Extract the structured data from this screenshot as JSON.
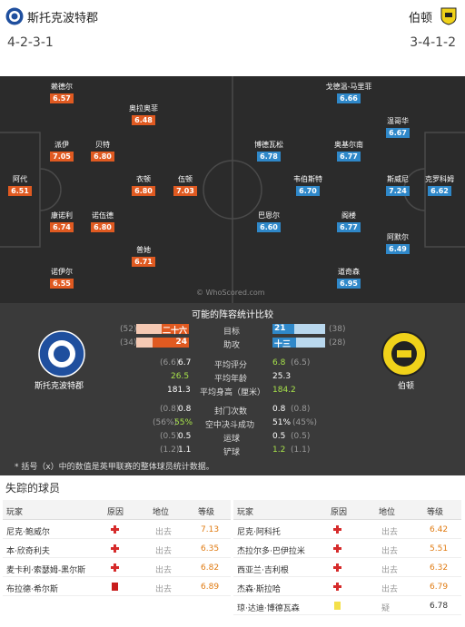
{
  "header": {
    "home_name": "斯托克波特郡",
    "home_formation": "4-2-3-1",
    "away_name": "伯顿",
    "away_formation": "3-4-1-2"
  },
  "home_players": [
    {
      "name": "赖德尔",
      "rating": "6.57"
    },
    {
      "name": "奥拉奥菲",
      "rating": "6.48"
    },
    {
      "name": "派伊",
      "rating": "7.05"
    },
    {
      "name": "贝特",
      "rating": "6.80"
    },
    {
      "name": "阿代",
      "rating": "6.51"
    },
    {
      "name": "衣顿",
      "rating": "6.80"
    },
    {
      "name": "伍顿",
      "rating": "7.03"
    },
    {
      "name": "康诺利",
      "rating": "6.74"
    },
    {
      "name": "诺伍德",
      "rating": "6.80"
    },
    {
      "name": "普她",
      "rating": "6.71"
    },
    {
      "name": "诺伊尔",
      "rating": "6.55"
    }
  ],
  "away_players": [
    {
      "name": "戈德温-马里菲",
      "rating": "6.66"
    },
    {
      "name": "温哥华",
      "rating": "6.67"
    },
    {
      "name": "博德瓦松",
      "rating": "6.78"
    },
    {
      "name": "奥基尔南",
      "rating": "6.77"
    },
    {
      "name": "韦伯斯特",
      "rating": "6.70"
    },
    {
      "name": "斯威尼",
      "rating": "7.24"
    },
    {
      "name": "克罗科姆",
      "rating": "6.62"
    },
    {
      "name": "巴恩尔",
      "rating": "6.60"
    },
    {
      "name": "阁楼",
      "rating": "6.77"
    },
    {
      "name": "阿默尔",
      "rating": "6.49"
    },
    {
      "name": "道奇森",
      "rating": "6.95"
    }
  ],
  "watermark": "© WhoScored.com",
  "stats": {
    "title": "可能的阵容统计比较",
    "home_team": "斯托克波特郡",
    "away_team": "伯顿",
    "goals": {
      "label": "目标",
      "home": "二十六",
      "home_avg": "(52)",
      "away": "21",
      "away_avg": "(38)"
    },
    "assists": {
      "label": "助攻",
      "home": "24",
      "home_avg": "(34)",
      "away": "十三",
      "away_avg": "(28)"
    },
    "rows": [
      {
        "label": "平均评分",
        "home": "6.7",
        "home_avg": "(6.6)",
        "away": "6.8",
        "away_avg": "(6.5)"
      },
      {
        "label": "平均年龄",
        "home": "26.5",
        "home_avg": "",
        "away": "25.3",
        "away_avg": ""
      },
      {
        "label": "平均身高（厘米）",
        "home": "181.3",
        "home_avg": "",
        "away": "184.2",
        "away_avg": ""
      },
      {
        "label": "封门次数",
        "home": "0.8",
        "home_avg": "(0.8)",
        "away": "0.8",
        "away_avg": "(0.8)"
      },
      {
        "label": "空中决斗成功",
        "home": "55%",
        "home_avg": "(56%)",
        "away": "51%",
        "away_avg": "(45%)"
      },
      {
        "label": "运球",
        "home": "0.5",
        "home_avg": "(0.5)",
        "away": "0.5",
        "away_avg": "(0.5)"
      },
      {
        "label": "铲球",
        "home": "1.1",
        "home_avg": "(1.2)",
        "away": "1.2",
        "away_avg": "(1.1)"
      }
    ],
    "note": "* 括号（x）中的数值是英甲联赛的整体球员统计数据。"
  },
  "missing": {
    "title": "失踪的球员",
    "headers": {
      "player": "玩家",
      "reason": "原因",
      "status": "地位",
      "rating": "等级"
    },
    "home": [
      {
        "player": "尼克·鲍威尔",
        "reason": "injury",
        "status": "出去",
        "rating": "7.13"
      },
      {
        "player": "本·欣奇利夫",
        "reason": "injury",
        "status": "出去",
        "rating": "6.35"
      },
      {
        "player": "麦卡利·索瑟姆-黑尔斯",
        "reason": "injury",
        "status": "出去",
        "rating": "6.82"
      },
      {
        "player": "布拉德·希尔斯",
        "reason": "red-card",
        "status": "出去",
        "rating": "6.89"
      }
    ],
    "away": [
      {
        "player": "尼克·阿科托",
        "reason": "injury",
        "status": "出去",
        "rating": "6.42"
      },
      {
        "player": "杰拉尔多·巴伊拉米",
        "reason": "injury",
        "status": "出去",
        "rating": "5.51"
      },
      {
        "player": "西亚兰·吉利根",
        "reason": "injury",
        "status": "出去",
        "rating": "6.32"
      },
      {
        "player": "杰森·斯拉哈",
        "reason": "injury",
        "status": "出去",
        "rating": "6.79"
      },
      {
        "player": "琼·达迪·博德瓦森",
        "reason": "yellow-card",
        "status": "疑",
        "rating": "6.78"
      }
    ]
  },
  "colors": {
    "home": "#e05a21",
    "away": "#2f88c9",
    "pitch": "#2b2b2b",
    "stats_bg": "#3a3a3a"
  }
}
